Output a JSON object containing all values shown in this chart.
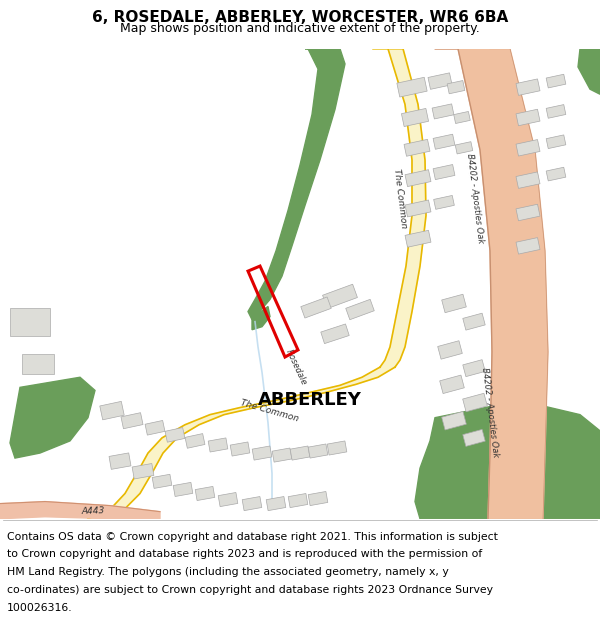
{
  "title": "6, ROSEDALE, ABBERLEY, WORCESTER, WR6 6BA",
  "subtitle": "Map shows position and indicative extent of the property.",
  "footer_lines": [
    "Contains OS data © Crown copyright and database right 2021. This information is subject",
    "to Crown copyright and database rights 2023 and is reproduced with the permission of",
    "HM Land Registry. The polygons (including the associated geometry, namely x, y",
    "co-ordinates) are subject to Crown copyright and database rights 2023 Ordnance Survey",
    "100026316."
  ],
  "map_bg": "#f7f7f5",
  "road_main_fill": "#faf3c8",
  "road_main_edge": "#e8b800",
  "road_b_fill": "#f0c0a0",
  "road_b_edge": "#d09878",
  "building_color": "#ddddd8",
  "building_edge": "#aaaaaa",
  "green_color": "#6a9e5a",
  "plot_color": "#e00000",
  "water_color": "#b8d8ee",
  "title_fontsize": 11,
  "subtitle_fontsize": 9,
  "footer_fontsize": 7.8,
  "label_color": "#333333"
}
